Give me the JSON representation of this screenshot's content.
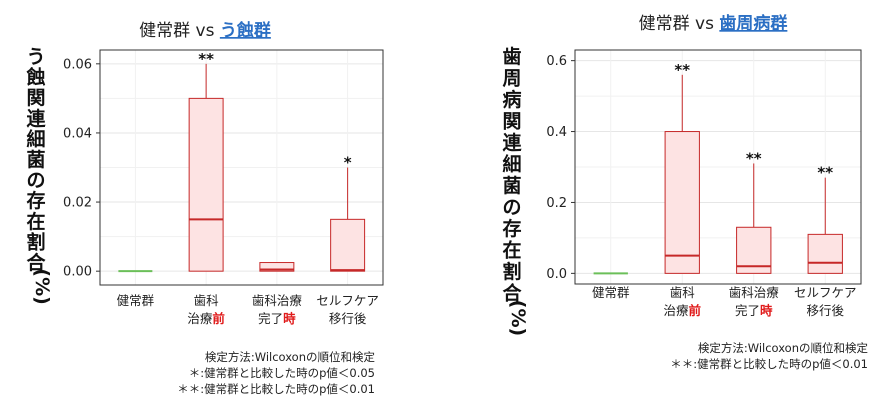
{
  "chart_data": [
    {
      "type": "box",
      "title_prefix": "健常群 vs ",
      "title_highlight": "う蝕群",
      "ylabel_chars": [
        "う",
        "蝕",
        "関",
        "連",
        "細",
        "菌",
        "の",
        "存",
        "在",
        "割",
        "合",
        "(%)"
      ],
      "yticks": [
        "0.00",
        "0.02",
        "0.04",
        "0.06"
      ],
      "ylim": [
        -0.004,
        0.064
      ],
      "categories": [
        {
          "line1": "健常群",
          "line2": "",
          "line2_red": ""
        },
        {
          "line1": "歯科",
          "line2": "治療",
          "line2_red": "前"
        },
        {
          "line1": "歯科治療",
          "line2": "完了",
          "line2_red": "時"
        },
        {
          "line1": "セルフケア",
          "line2": "移行後",
          "line2_red": ""
        }
      ],
      "boxes": [
        {
          "q1": 0.0,
          "median": 0.0,
          "q3": 0.0,
          "whisker_high": 0.0,
          "significance": ""
        },
        {
          "q1": 0.0,
          "median": 0.015,
          "q3": 0.05,
          "whisker_high": 0.06,
          "significance": "**"
        },
        {
          "q1": 0.0,
          "median": 0.0005,
          "q3": 0.0025,
          "whisker_high": 0.0025,
          "significance": ""
        },
        {
          "q1": 0.0,
          "median": 0.0003,
          "q3": 0.015,
          "whisker_high": 0.03,
          "significance": "*"
        }
      ],
      "notes": [
        "検定方法:Wilcoxonの順位和検定",
        "＊:健常群と比較した時のp値＜0.05",
        "＊＊:健常群と比較した時のp値＜0.01"
      ]
    },
    {
      "type": "box",
      "title_prefix": "健常群 vs ",
      "title_highlight": "歯周病群",
      "ylabel_chars": [
        "歯",
        "周",
        "病",
        "関",
        "連",
        "細",
        "菌",
        "の",
        "存",
        "在",
        "割",
        "合",
        "(%)"
      ],
      "yticks": [
        "0.0",
        "0.2",
        "0.4",
        "0.6"
      ],
      "ylim": [
        -0.03,
        0.63
      ],
      "categories": [
        {
          "line1": "健常群",
          "line2": "",
          "line2_red": ""
        },
        {
          "line1": "歯科",
          "line2": "治療",
          "line2_red": "前"
        },
        {
          "line1": "歯科治療",
          "line2": "完了",
          "line2_red": "時"
        },
        {
          "line1": "セルフケア",
          "line2": "移行後",
          "line2_red": ""
        }
      ],
      "boxes": [
        {
          "q1": 0.0,
          "median": 0.0,
          "q3": 0.0,
          "whisker_high": 0.0,
          "significance": ""
        },
        {
          "q1": 0.0,
          "median": 0.05,
          "q3": 0.4,
          "whisker_high": 0.56,
          "significance": "**"
        },
        {
          "q1": 0.0,
          "median": 0.02,
          "q3": 0.13,
          "whisker_high": 0.31,
          "significance": "**"
        },
        {
          "q1": 0.0,
          "median": 0.03,
          "q3": 0.11,
          "whisker_high": 0.27,
          "significance": "**"
        }
      ],
      "notes": [
        "検定方法:Wilcoxonの順位和検定",
        "＊＊:健常群と比較した時のp値＜0.01"
      ]
    }
  ],
  "colors": {
    "box_fill": "#fde3e3",
    "box_stroke": "#c62828",
    "healthy_line": "#6bbf59",
    "grid": "#e6e6e6",
    "highlight": "#2b6fc4",
    "red_text": "#e01b1b"
  }
}
